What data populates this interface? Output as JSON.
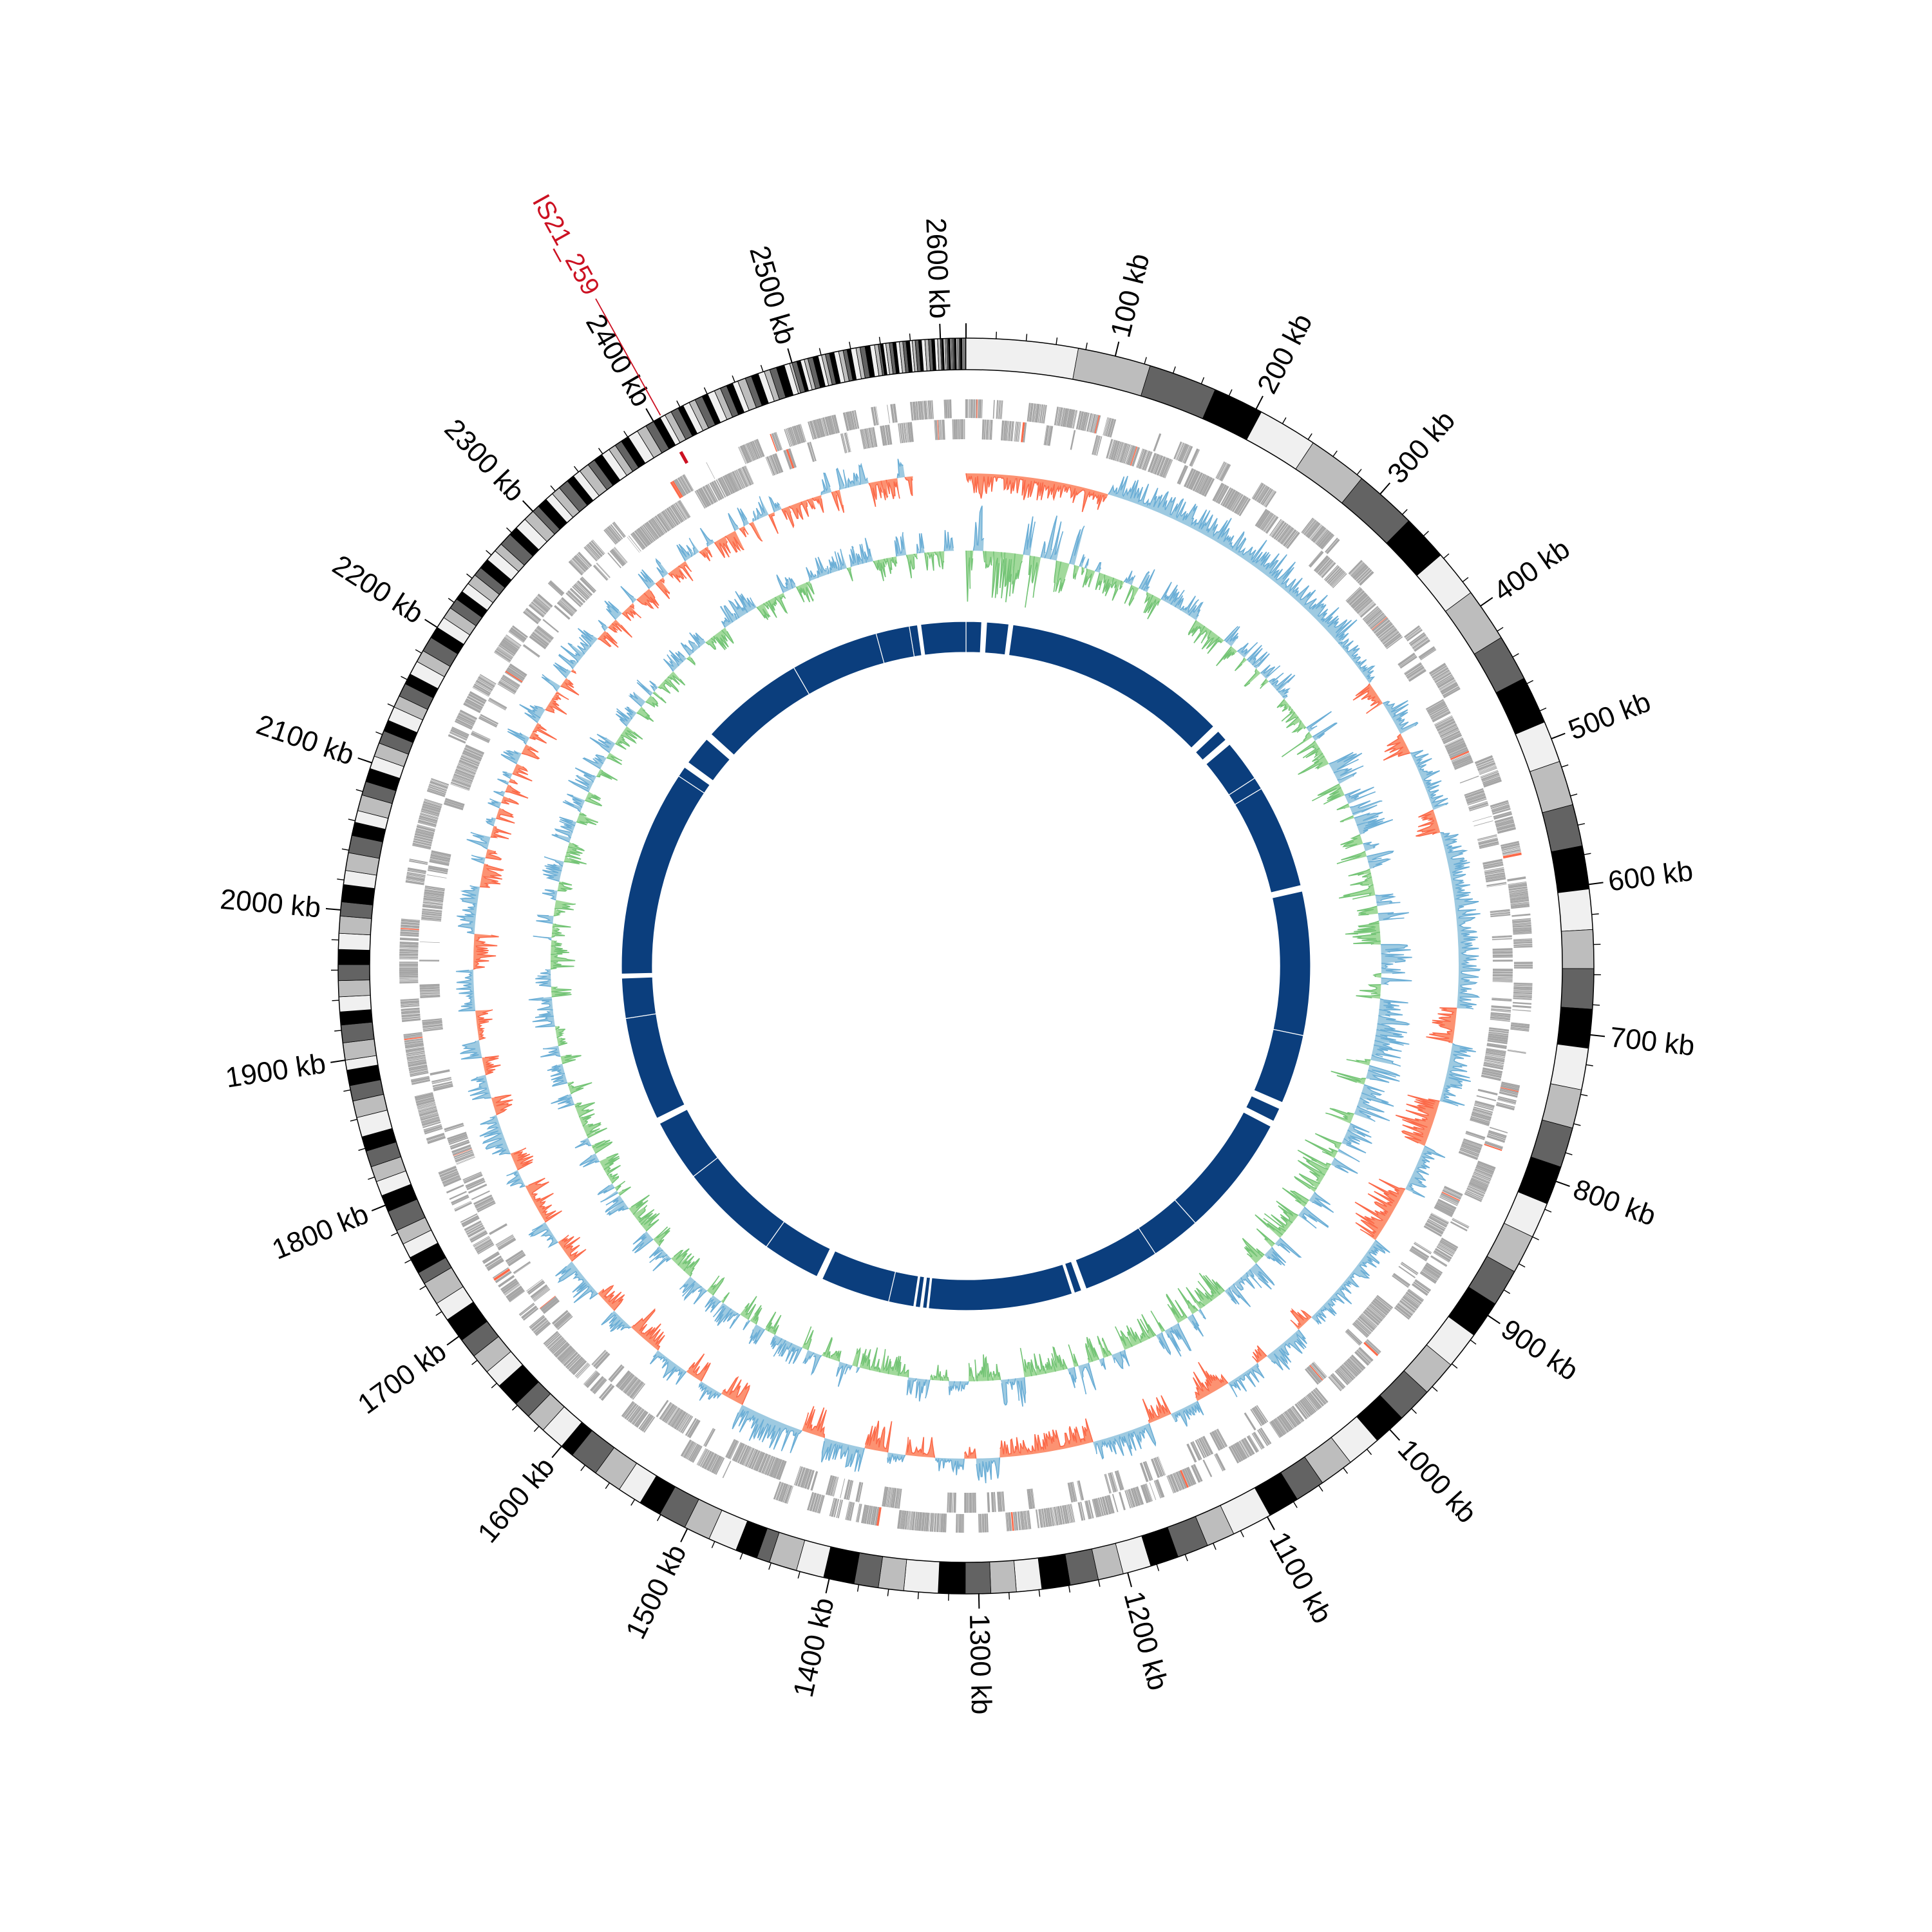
{
  "chart_data": {
    "type": "area",
    "genome_length_kb": 2617,
    "ticks": {
      "major_kb": 100,
      "minor_kb": 20,
      "values": [
        100,
        200,
        300,
        400,
        500,
        600,
        700,
        800,
        900,
        1000,
        1100,
        1200,
        1300,
        1400,
        1500,
        1600,
        1700,
        1800,
        1900,
        2000,
        2100,
        2200,
        2300,
        2400,
        2500,
        2600
      ],
      "labels": [
        "100 kb",
        "200 kb",
        "300 kb",
        "400 kb",
        "500 kb",
        "600 kb",
        "700 kb",
        "800 kb",
        "900 kb",
        "1000 kb",
        "1100 kb",
        "1200 kb",
        "1300 kb",
        "1400 kb",
        "1500 kb",
        "1600 kb",
        "1700 kb",
        "1800 kb",
        "1900 kb",
        "2000 kb",
        "2100 kb",
        "2200 kb",
        "2300 kb",
        "2400 kb",
        "2500 kb",
        "2600 kb"
      ]
    },
    "ideogram": {
      "colors": [
        "#f0f0f0",
        "#bdbdbd",
        "#636363",
        "#000000"
      ],
      "measured_boundaries_kb": [
        0,
        75,
        124,
        170,
        204,
        244,
        284,
        326,
        357,
        389,
        425,
        456,
        488,
        516,
        546,
        574,
        603,
        630,
        656,
        683,
        709,
        737,
        763,
        790,
        816,
        840,
        866,
        891,
        916,
        941,
        965,
        989,
        1011,
        1034,
        1057,
        1077,
        1098,
        1125,
        1144,
        1165,
        1184,
        1203,
        1220,
        1239,
        1258,
        1275,
        1292,
        1309,
        1327
      ],
      "band_size_by_region": [
        [
          1327,
          1450,
          20
        ],
        [
          1450,
          1600,
          17
        ],
        [
          1600,
          1750,
          14
        ],
        [
          1750,
          1900,
          12
        ],
        [
          1900,
          2050,
          10
        ],
        [
          2050,
          2200,
          9
        ],
        [
          2200,
          2300,
          7.5
        ],
        [
          2300,
          2400,
          6
        ],
        [
          2400,
          2500,
          4.5
        ],
        [
          2500,
          2560,
          3
        ],
        [
          2560,
          2600,
          2
        ],
        [
          2600,
          2617,
          1
        ]
      ]
    },
    "genes": {
      "color": "#a6a6a6",
      "highlight_color": "#fb6a4a"
    },
    "feature": {
      "label": "IS21_259",
      "position_kb": 2406,
      "color": "#cc1122"
    },
    "track_outer": {
      "pos_fill": "#9ecae1",
      "pos_line": "#6baed6",
      "neg_fill": "#fc9272",
      "neg_line": "#fb6a4a",
      "segments": [
        [
          0,
          122,
          -1,
          0.6
        ],
        [
          122,
          357,
          1,
          0.7
        ],
        [
          357,
          400,
          1,
          0.4
        ],
        [
          400,
          420,
          -1,
          0.6
        ],
        [
          420,
          450,
          1,
          0.6
        ],
        [
          450,
          468,
          -1,
          0.8
        ],
        [
          468,
          520,
          1,
          0.5
        ],
        [
          520,
          540,
          -1,
          0.7
        ],
        [
          540,
          690,
          1,
          0.6
        ],
        [
          690,
          720,
          -1,
          0.7
        ],
        [
          720,
          770,
          1,
          0.6
        ],
        [
          770,
          810,
          -1,
          0.9
        ],
        [
          810,
          850,
          1,
          0.6
        ],
        [
          850,
          900,
          -1,
          0.9
        ],
        [
          900,
          985,
          1,
          0.5
        ],
        [
          985,
          1000,
          -1,
          0.5
        ],
        [
          1000,
          1035,
          1,
          0.6
        ],
        [
          1035,
          1045,
          -1,
          0.4
        ],
        [
          1045,
          1075,
          1,
          0.6
        ],
        [
          1075,
          1105,
          -1,
          0.8
        ],
        [
          1105,
          1130,
          1,
          0.5
        ],
        [
          1130,
          1150,
          -1,
          0.6
        ],
        [
          1150,
          1200,
          1,
          0.6
        ],
        [
          1200,
          1280,
          -1,
          0.6
        ],
        [
          1280,
          1300,
          1,
          0.7
        ],
        [
          1300,
          1310,
          -1,
          0.4
        ],
        [
          1310,
          1335,
          1,
          0.4
        ],
        [
          1335,
          1360,
          -1,
          0.6
        ],
        [
          1360,
          1375,
          1,
          0.4
        ],
        [
          1375,
          1395,
          -1,
          0.8
        ],
        [
          1395,
          1430,
          1,
          0.7
        ],
        [
          1430,
          1450,
          -1,
          0.8
        ],
        [
          1450,
          1505,
          1,
          0.8
        ],
        [
          1505,
          1525,
          -1,
          0.7
        ],
        [
          1525,
          1545,
          1,
          0.5
        ],
        [
          1545,
          1560,
          -1,
          0.7
        ],
        [
          1560,
          1590,
          1,
          0.5
        ],
        [
          1590,
          1620,
          -1,
          0.7
        ],
        [
          1620,
          1640,
          1,
          0.5
        ],
        [
          1640,
          1660,
          -1,
          0.7
        ],
        [
          1660,
          1695,
          1,
          0.6
        ],
        [
          1695,
          1715,
          -1,
          0.6
        ],
        [
          1715,
          1735,
          1,
          0.5
        ],
        [
          1735,
          1770,
          -1,
          0.6
        ],
        [
          1770,
          1785,
          1,
          0.4
        ],
        [
          1785,
          1800,
          -1,
          0.6
        ],
        [
          1800,
          1835,
          1,
          0.6
        ],
        [
          1835,
          1850,
          -1,
          0.6
        ],
        [
          1850,
          1870,
          1,
          0.6
        ],
        [
          1870,
          1885,
          -1,
          0.5
        ],
        [
          1885,
          1900,
          1,
          0.6
        ],
        [
          1900,
          1925,
          -1,
          0.5
        ],
        [
          1925,
          1960,
          1,
          0.5
        ],
        [
          1960,
          1990,
          -1,
          0.6
        ],
        [
          1990,
          2030,
          1,
          0.5
        ],
        [
          2030,
          2050,
          -1,
          0.6
        ],
        [
          2050,
          2572,
          0,
          0.6
        ]
      ]
    },
    "track_inner": {
      "pos_fill": "#9ecae1",
      "pos_line": "#6baed6",
      "neg_fill": "#a1d99b",
      "neg_line": "#74c476",
      "segments": [
        [
          0,
          110,
          0,
          0.9
        ],
        [
          110,
          400,
          0,
          0.4
        ],
        [
          400,
          1000,
          0,
          0.6
        ],
        [
          1000,
          1300,
          0,
          0.5
        ],
        [
          1300,
          2605,
          0,
          0.4
        ]
      ]
    },
    "contigs": {
      "color": "#0b3e7d",
      "segments": [
        [
          0,
          19
        ],
        [
          25,
          52
        ],
        [
          57,
          334
        ],
        [
          342,
          356
        ],
        [
          363,
          414
        ],
        [
          414,
          429
        ],
        [
          429,
          556
        ],
        [
          563,
          739
        ],
        [
          739,
          824
        ],
        [
          832,
          849
        ],
        [
          856,
          1005
        ],
        [
          1005,
          1066
        ],
        [
          1066,
          1160
        ],
        [
          1166,
          1175
        ],
        [
          1178,
          1354
        ],
        [
          1356,
          1361
        ],
        [
          1364,
          1370
        ],
        [
          1372,
          1403
        ],
        [
          1403,
          1488
        ],
        [
          1495,
          1566
        ],
        [
          1566,
          1689
        ],
        [
          1689,
          1765
        ],
        [
          1772,
          1899
        ],
        [
          1899,
          1948
        ],
        [
          1953,
          2206
        ],
        [
          2206,
          2219
        ],
        [
          2226,
          2262
        ],
        [
          2270,
          2399
        ],
        [
          2399,
          2507
        ],
        [
          2507,
          2548
        ],
        [
          2548,
          2558
        ],
        [
          2562,
          2617
        ]
      ]
    }
  }
}
